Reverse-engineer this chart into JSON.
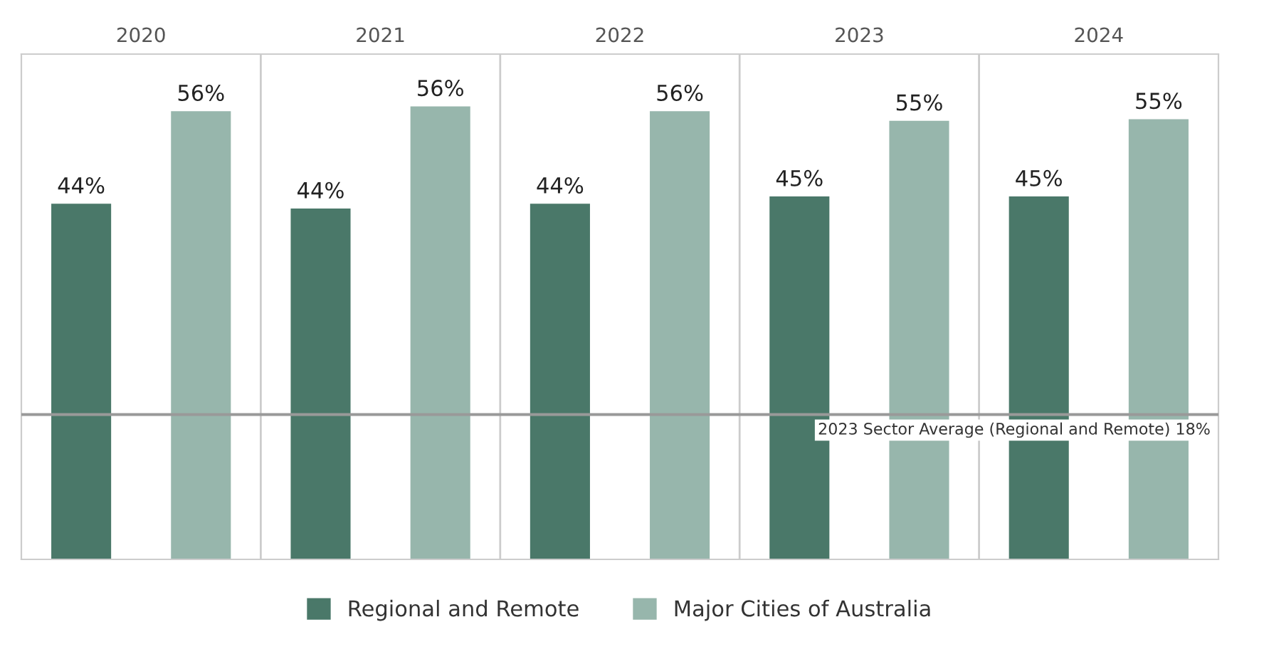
{
  "chart_data": {
    "type": "bar",
    "categories": [
      "2020",
      "2021",
      "2022",
      "2023",
      "2024"
    ],
    "series": [
      {
        "name": "Regional and Remote",
        "color": "#4a7869",
        "values": [
          44.2,
          43.6,
          44.2,
          45.1,
          45.1
        ],
        "value_labels": [
          "44%",
          "44%",
          "44%",
          "45%",
          "45%"
        ]
      },
      {
        "name": "Major Cities of Australia",
        "color": "#97b6ac",
        "values": [
          55.7,
          56.3,
          55.7,
          54.5,
          54.7
        ],
        "value_labels": [
          "56%",
          "56%",
          "56%",
          "55%",
          "55%"
        ]
      }
    ],
    "ylim": [
      0,
      62.8
    ],
    "tick_labels": "x",
    "grid": "x",
    "legend": "bottom",
    "ref_lines": [
      {
        "axis": "y",
        "value": 18,
        "label": "2023 Sector Average (Regional and Remote) 18%",
        "color": "#999999"
      }
    ]
  }
}
